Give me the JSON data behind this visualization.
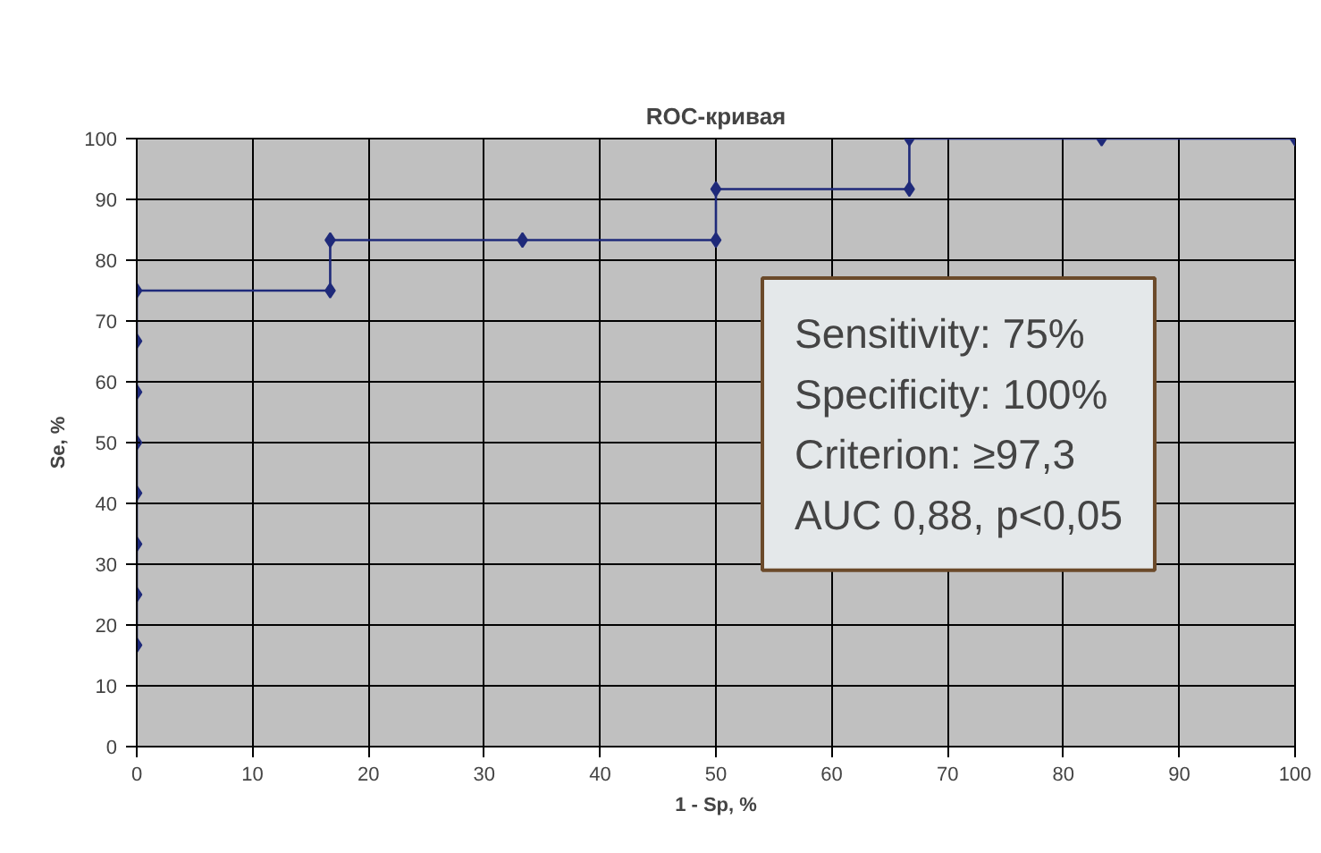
{
  "chart_data": {
    "type": "line",
    "title": "ROC-кривая",
    "xlabel": "1 - Sp, %",
    "ylabel": "Se, %",
    "series": [
      {
        "color": "#1f2a7a",
        "x": [
          0,
          0,
          0,
          0,
          0,
          0,
          0,
          0,
          16.7,
          16.7,
          33.3,
          50,
          50,
          66.7,
          66.7,
          83.3,
          100
        ],
        "values": [
          16.7,
          25,
          33.3,
          41.7,
          50,
          58.3,
          66.7,
          75,
          75,
          83.3,
          83.3,
          83.3,
          91.7,
          91.7,
          100,
          100,
          100
        ]
      }
    ],
    "xlim": [
      0,
      100
    ],
    "ylim": [
      0,
      100
    ],
    "xticks": [
      0,
      10,
      20,
      30,
      40,
      50,
      60,
      70,
      80,
      90,
      100
    ],
    "yticks": [
      0,
      10,
      20,
      30,
      40,
      50,
      60,
      70,
      80,
      90,
      100
    ],
    "grid": true,
    "marker": "diamond",
    "line_style": "solid",
    "annotations": [
      "Sensitivity: 75%",
      "Specificity: 100%",
      "Criterion: ≥97,3",
      "AUC 0,88, p<0,05"
    ]
  }
}
